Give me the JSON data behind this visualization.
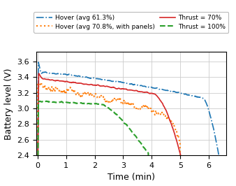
{
  "title": "",
  "xlabel": "Time (min)",
  "ylabel": "Battery level (V)",
  "xlim": [
    -0.05,
    6.6
  ],
  "ylim": [
    2.4,
    3.72
  ],
  "yticks": [
    2.4,
    2.6,
    2.8,
    3.0,
    3.2,
    3.4,
    3.6
  ],
  "xticks": [
    0,
    1,
    2,
    3,
    4,
    5,
    6
  ],
  "legend_entries": [
    {
      "label": "Hover (avg 61.3%)",
      "color": "#1f77b4",
      "linestyle": "dashdot",
      "linewidth": 1.2
    },
    {
      "label": "Hover (avg 70.8%, with panels)",
      "color": "#ff7f0e",
      "linestyle": "dotted",
      "linewidth": 1.5
    },
    {
      "label": "Thrust = 70%",
      "color": "#d62728",
      "linestyle": "solid",
      "linewidth": 1.2
    },
    {
      "label": "Thrust = 100%",
      "color": "#2ca02c",
      "linestyle": "dashed",
      "linewidth": 1.5
    }
  ],
  "background_color": "#ffffff",
  "grid_color": "#cccccc"
}
